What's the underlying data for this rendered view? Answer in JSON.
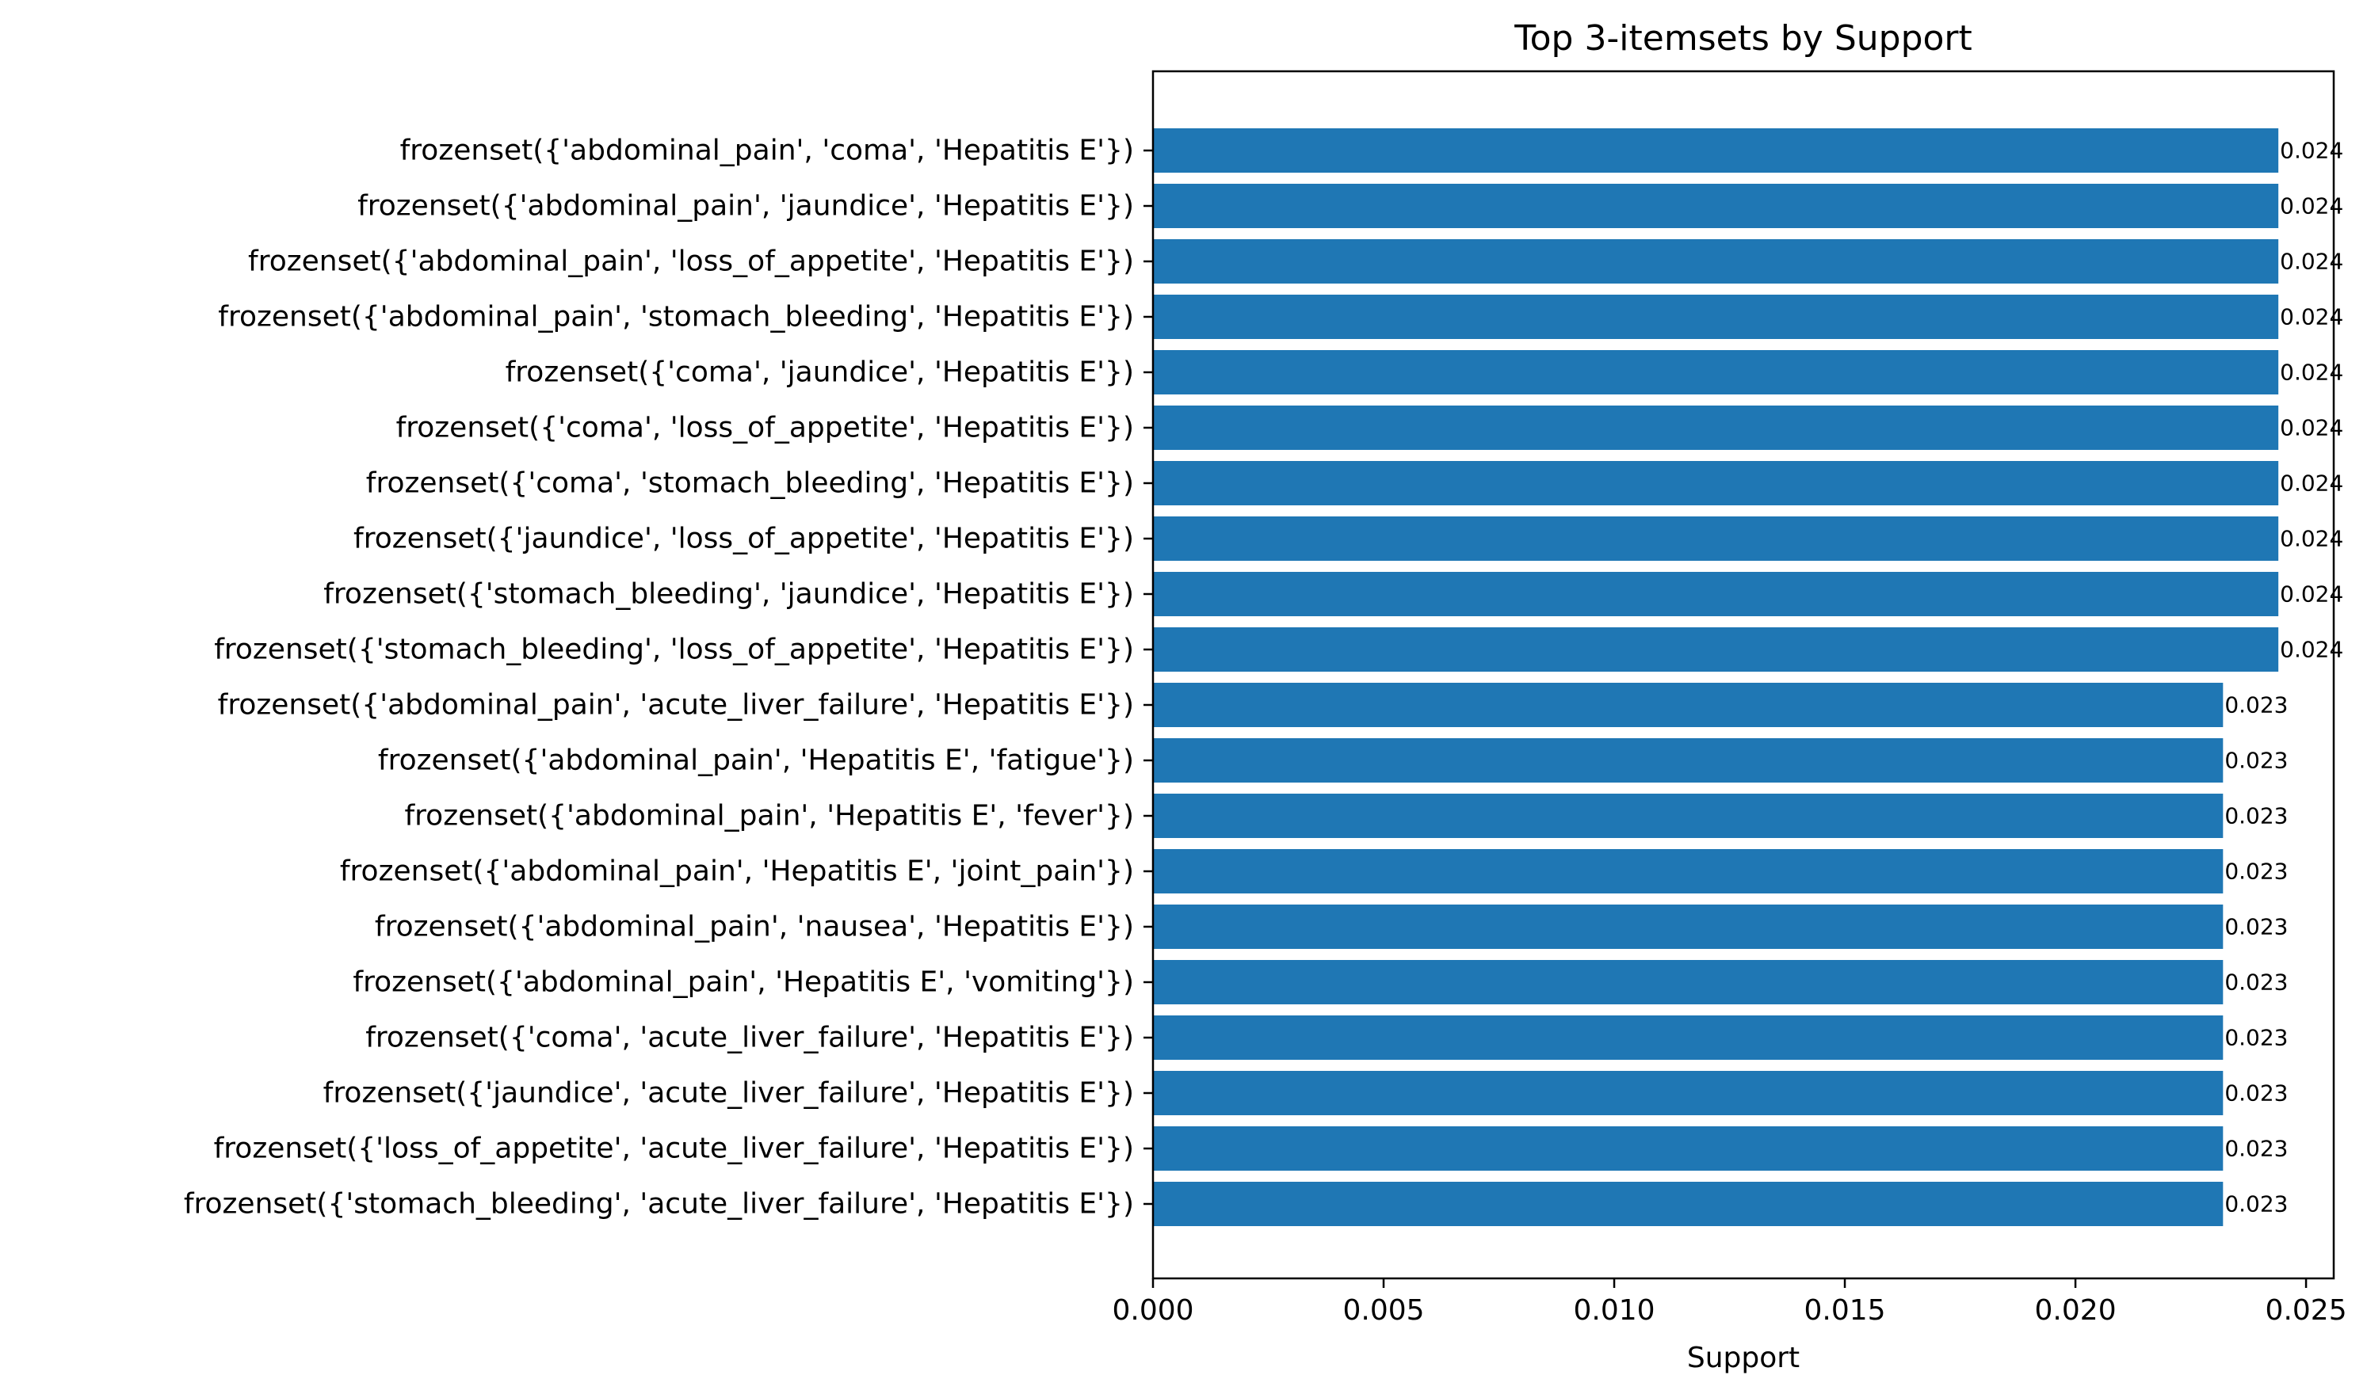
{
  "chart_data": {
    "type": "bar",
    "orientation": "horizontal",
    "title": "Top 3-itemsets by Support",
    "xlabel": "Support",
    "ylabel": "",
    "xlim": [
      0,
      0.0256
    ],
    "xticks": [
      "0.000",
      "0.005",
      "0.010",
      "0.015",
      "0.020",
      "0.025"
    ],
    "xtick_values": [
      0,
      0.005,
      0.01,
      0.015,
      0.02,
      0.025
    ],
    "grid": false,
    "bar_color": "#1f77b4",
    "categories": [
      "frozenset({'abdominal_pain', 'coma', 'Hepatitis E'})",
      "frozenset({'abdominal_pain', 'jaundice', 'Hepatitis E'})",
      "frozenset({'abdominal_pain', 'loss_of_appetite', 'Hepatitis E'})",
      "frozenset({'abdominal_pain', 'stomach_bleeding', 'Hepatitis E'})",
      "frozenset({'coma', 'jaundice', 'Hepatitis E'})",
      "frozenset({'coma', 'loss_of_appetite', 'Hepatitis E'})",
      "frozenset({'coma', 'stomach_bleeding', 'Hepatitis E'})",
      "frozenset({'jaundice', 'loss_of_appetite', 'Hepatitis E'})",
      "frozenset({'stomach_bleeding', 'jaundice', 'Hepatitis E'})",
      "frozenset({'stomach_bleeding', 'loss_of_appetite', 'Hepatitis E'})",
      "frozenset({'abdominal_pain', 'acute_liver_failure', 'Hepatitis E'})",
      "frozenset({'abdominal_pain', 'Hepatitis E', 'fatigue'})",
      "frozenset({'abdominal_pain', 'Hepatitis E', 'fever'})",
      "frozenset({'abdominal_pain', 'Hepatitis E', 'joint_pain'})",
      "frozenset({'abdominal_pain', 'nausea', 'Hepatitis E'})",
      "frozenset({'abdominal_pain', 'Hepatitis E', 'vomiting'})",
      "frozenset({'coma', 'acute_liver_failure', 'Hepatitis E'})",
      "frozenset({'jaundice', 'acute_liver_failure', 'Hepatitis E'})",
      "frozenset({'loss_of_appetite', 'acute_liver_failure', 'Hepatitis E'})",
      "frozenset({'stomach_bleeding', 'acute_liver_failure', 'Hepatitis E'})"
    ],
    "values": [
      0.0244,
      0.0244,
      0.0244,
      0.0244,
      0.0244,
      0.0244,
      0.0244,
      0.0244,
      0.0244,
      0.0244,
      0.0232,
      0.0232,
      0.0232,
      0.0232,
      0.0232,
      0.0232,
      0.0232,
      0.0232,
      0.0232,
      0.0232
    ],
    "data_labels": [
      "0.024",
      "0.024",
      "0.024",
      "0.024",
      "0.024",
      "0.024",
      "0.024",
      "0.024",
      "0.024",
      "0.024",
      "0.023",
      "0.023",
      "0.023",
      "0.023",
      "0.023",
      "0.023",
      "0.023",
      "0.023",
      "0.023",
      "0.023"
    ]
  }
}
